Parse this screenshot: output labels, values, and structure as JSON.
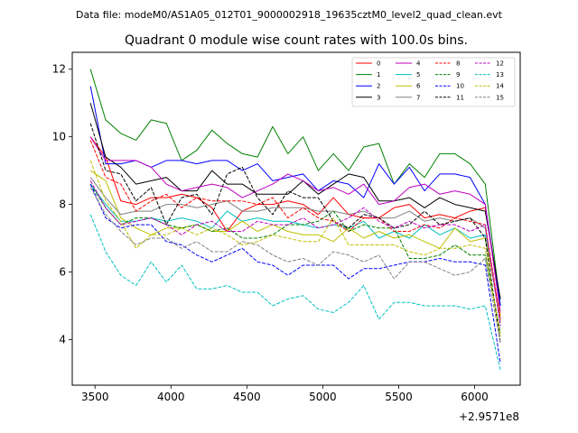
{
  "figure": {
    "suptitle": "Data file: modeM0/AS1A05_012T01_9000002918_19635cztM0_level2_quad_clean.evt"
  },
  "chart_data": {
    "type": "line",
    "title": "Quadrant 0 module wise count rates with 100.0s bins.",
    "xlabel": "",
    "ylabel": "",
    "x_offset_label": "+2.9571e8",
    "xlim": [
      3350,
      6300
    ],
    "ylim": [
      2.65,
      12.5
    ],
    "xticks": [
      3500,
      4000,
      4500,
      5000,
      5500,
      6000
    ],
    "xtick_labels": [
      "3500",
      "4000",
      "4500",
      "5000",
      "5500",
      "6000"
    ],
    "yticks": [
      4,
      6,
      8,
      10,
      12
    ],
    "ytick_labels": [
      "4",
      "6",
      "8",
      "10",
      "12"
    ],
    "grid": false,
    "legend_position": "upper right",
    "legend_columns": 4,
    "x": [
      3470,
      3570,
      3670,
      3770,
      3870,
      3970,
      4070,
      4170,
      4270,
      4370,
      4470,
      4570,
      4670,
      4770,
      4870,
      4970,
      5070,
      5170,
      5270,
      5370,
      5470,
      5570,
      5670,
      5770,
      5870,
      5970,
      6070,
      6170
    ],
    "series": [
      {
        "name": "0",
        "color": "#ff0000",
        "dash": "solid",
        "values": [
          10.0,
          9.4,
          8.1,
          8.0,
          8.2,
          8.2,
          8.3,
          8.2,
          7.9,
          7.2,
          7.8,
          8.0,
          8.0,
          8.1,
          8.0,
          7.7,
          8.2,
          7.7,
          7.6,
          7.6,
          7.9,
          8.0,
          7.6,
          7.7,
          7.6,
          7.8,
          7.9,
          5.0
        ]
      },
      {
        "name": "1",
        "color": "#008000",
        "dash": "solid",
        "values": [
          12.0,
          10.5,
          10.1,
          9.9,
          10.5,
          10.4,
          9.3,
          9.6,
          10.2,
          9.8,
          9.5,
          9.4,
          10.3,
          9.5,
          10.0,
          9.0,
          9.5,
          9.0,
          9.7,
          9.8,
          8.6,
          9.2,
          8.8,
          9.5,
          9.5,
          9.2,
          8.6,
          5.0
        ]
      },
      {
        "name": "2",
        "color": "#0000ff",
        "dash": "solid",
        "values": [
          11.5,
          9.2,
          9.2,
          9.3,
          9.1,
          9.3,
          9.3,
          9.2,
          9.3,
          9.3,
          9.0,
          9.2,
          8.7,
          8.8,
          8.9,
          8.4,
          8.7,
          8.6,
          8.2,
          9.2,
          8.6,
          9.1,
          8.4,
          8.9,
          8.9,
          8.8,
          8.0,
          5.0
        ]
      },
      {
        "name": "3",
        "color": "#000000",
        "dash": "solid",
        "values": [
          11.0,
          9.4,
          9.1,
          8.6,
          8.7,
          8.8,
          8.4,
          8.4,
          9.0,
          8.6,
          8.6,
          8.3,
          8.3,
          8.3,
          8.7,
          8.3,
          8.6,
          8.9,
          8.8,
          8.1,
          8.1,
          8.2,
          7.9,
          8.2,
          8.0,
          7.9,
          7.8,
          5.2
        ]
      },
      {
        "name": "4",
        "color": "#bf00bf",
        "dash": "solid",
        "values": [
          10.0,
          9.3,
          9.3,
          9.3,
          9.1,
          8.6,
          8.4,
          8.5,
          8.6,
          8.5,
          8.2,
          8.4,
          8.6,
          8.9,
          8.7,
          8.4,
          8.5,
          8.3,
          8.6,
          8.0,
          8.1,
          8.5,
          8.6,
          8.3,
          8.4,
          8.3,
          8.0,
          4.8
        ]
      },
      {
        "name": "5",
        "color": "#00bfbf",
        "dash": "solid",
        "values": [
          8.6,
          8.0,
          7.5,
          7.5,
          7.6,
          7.5,
          7.6,
          7.5,
          7.3,
          7.8,
          7.5,
          7.6,
          7.5,
          7.5,
          7.4,
          7.3,
          7.4,
          7.3,
          7.5,
          7.0,
          7.2,
          7.0,
          7.4,
          7.1,
          7.3,
          7.0,
          7.1,
          4.6
        ]
      },
      {
        "name": "6",
        "color": "#bfbf00",
        "dash": "solid",
        "values": [
          9.0,
          8.7,
          7.6,
          7.3,
          7.1,
          7.3,
          7.3,
          7.4,
          7.2,
          7.2,
          7.5,
          7.2,
          7.4,
          7.2,
          7.1,
          7.1,
          6.9,
          7.3,
          7.0,
          7.2,
          7.0,
          7.1,
          6.9,
          6.7,
          7.3,
          6.9,
          7.0,
          4.7
        ]
      },
      {
        "name": "7",
        "color": "#808080",
        "dash": "solid",
        "values": [
          8.8,
          8.2,
          7.7,
          7.8,
          7.8,
          8.0,
          8.0,
          7.9,
          8.0,
          8.1,
          7.8,
          7.8,
          7.9,
          7.9,
          7.9,
          7.8,
          7.8,
          7.7,
          7.8,
          7.6,
          7.6,
          7.8,
          7.5,
          7.6,
          7.5,
          7.6,
          7.3,
          4.5
        ]
      },
      {
        "name": "8",
        "color": "#ff0000",
        "dash": "dashed",
        "values": [
          9.9,
          8.8,
          8.6,
          7.8,
          8.1,
          8.3,
          7.9,
          8.2,
          8.1,
          8.1,
          8.1,
          8.0,
          8.2,
          7.6,
          7.9,
          7.6,
          7.5,
          7.2,
          7.6,
          7.6,
          7.2,
          7.2,
          7.4,
          7.3,
          7.6,
          7.5,
          7.4,
          4.6
        ]
      },
      {
        "name": "9",
        "color": "#008000",
        "dash": "dashed",
        "values": [
          8.6,
          7.9,
          7.4,
          7.6,
          7.6,
          7.4,
          7.3,
          7.4,
          7.2,
          7.3,
          7.0,
          7.0,
          7.1,
          7.4,
          7.4,
          7.5,
          7.8,
          7.2,
          7.4,
          7.3,
          7.3,
          6.4,
          6.4,
          6.5,
          6.8,
          6.5,
          6.5,
          4.2
        ]
      },
      {
        "name": "10",
        "color": "#0000ff",
        "dash": "dashed",
        "values": [
          8.6,
          7.6,
          7.3,
          7.4,
          7.4,
          6.9,
          6.8,
          6.5,
          6.3,
          6.5,
          6.7,
          6.3,
          6.2,
          5.9,
          6.2,
          6.2,
          6.2,
          5.8,
          6.1,
          6.1,
          6.2,
          6.3,
          6.3,
          6.4,
          6.3,
          6.3,
          6.2,
          3.3
        ]
      },
      {
        "name": "11",
        "color": "#000000",
        "dash": "dashed",
        "values": [
          10.4,
          9.0,
          8.9,
          8.1,
          8.5,
          7.4,
          8.2,
          8.3,
          7.7,
          8.9,
          9.1,
          8.2,
          7.7,
          8.4,
          8.2,
          8.2,
          7.5,
          7.3,
          7.7,
          7.6,
          7.3,
          7.4,
          7.8,
          7.4,
          7.5,
          7.6,
          7.0,
          3.9
        ]
      },
      {
        "name": "12",
        "color": "#bf00bf",
        "dash": "dashed",
        "values": [
          8.7,
          7.9,
          7.4,
          7.5,
          7.6,
          7.4,
          7.1,
          7.4,
          7.5,
          7.2,
          7.2,
          7.5,
          7.4,
          7.4,
          7.6,
          7.3,
          7.4,
          7.6,
          7.9,
          7.5,
          7.3,
          7.5,
          7.3,
          7.4,
          7.4,
          7.2,
          7.4,
          4.4
        ]
      },
      {
        "name": "13",
        "color": "#00bfbf",
        "dash": "dashed",
        "values": [
          7.7,
          6.6,
          5.9,
          5.6,
          6.3,
          5.7,
          6.2,
          5.5,
          5.5,
          5.6,
          5.4,
          5.4,
          5.0,
          5.2,
          5.3,
          4.9,
          4.8,
          5.1,
          5.6,
          4.6,
          5.1,
          5.1,
          5.0,
          5.0,
          5.0,
          4.9,
          5.0,
          3.1
        ]
      },
      {
        "name": "14",
        "color": "#bfbf00",
        "dash": "dashed",
        "values": [
          9.3,
          8.1,
          7.5,
          6.7,
          7.1,
          7.1,
          7.3,
          7.1,
          7.3,
          7.1,
          6.8,
          6.9,
          7.1,
          7.0,
          6.9,
          6.9,
          7.6,
          6.8,
          6.8,
          6.8,
          6.8,
          6.6,
          6.5,
          6.7,
          6.7,
          6.8,
          6.7,
          4.1
        ]
      },
      {
        "name": "15",
        "color": "#808080",
        "dash": "dashed",
        "values": [
          8.5,
          7.7,
          7.2,
          6.8,
          7.0,
          7.0,
          6.7,
          6.9,
          6.6,
          6.6,
          6.9,
          6.8,
          6.5,
          6.3,
          6.4,
          6.2,
          6.6,
          6.5,
          6.3,
          6.5,
          5.8,
          6.3,
          6.3,
          6.1,
          5.9,
          6.0,
          6.4,
          3.9
        ]
      }
    ]
  }
}
